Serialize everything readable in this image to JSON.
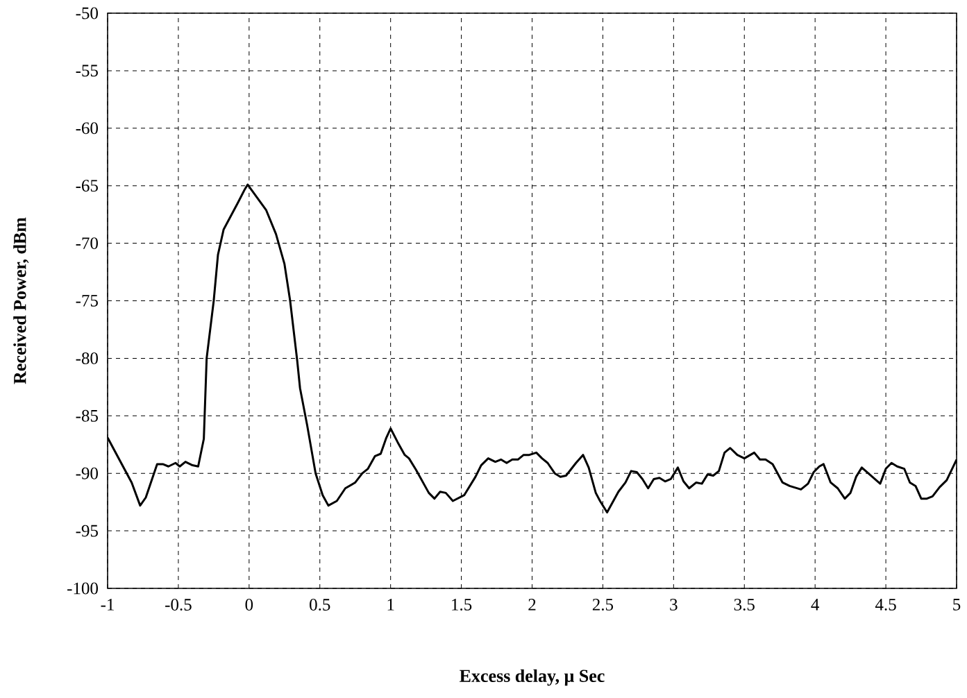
{
  "chart_data": {
    "type": "line",
    "xlabel": "Excess delay, μ Sec",
    "ylabel": "Received Power, dBm",
    "xlim": [
      -1,
      5
    ],
    "ylim": [
      -100,
      -50
    ],
    "xticks": [
      -1,
      -0.5,
      0,
      0.5,
      1,
      1.5,
      2,
      2.5,
      3,
      3.5,
      4,
      4.5,
      5
    ],
    "yticks": [
      -100,
      -95,
      -90,
      -85,
      -80,
      -75,
      -70,
      -65,
      -60,
      -55,
      -50
    ],
    "grid": true,
    "marker": "none",
    "line_style": "solid",
    "series": [
      {
        "color": "#000000",
        "x": [
          -1.0,
          -0.83,
          -0.77,
          -0.73,
          -0.65,
          -0.61,
          -0.57,
          -0.52,
          -0.49,
          -0.45,
          -0.4,
          -0.36,
          -0.32,
          -0.3,
          -0.25,
          -0.22,
          -0.18,
          -0.08,
          -0.03,
          -0.01,
          0.12,
          0.19,
          0.25,
          0.29,
          0.34,
          0.36,
          0.41,
          0.47,
          0.52,
          0.56,
          0.62,
          0.68,
          0.75,
          0.8,
          0.84,
          0.89,
          0.93,
          0.97,
          1.0,
          1.05,
          1.1,
          1.13,
          1.18,
          1.27,
          1.31,
          1.35,
          1.39,
          1.44,
          1.52,
          1.6,
          1.64,
          1.69,
          1.74,
          1.78,
          1.82,
          1.86,
          1.9,
          1.94,
          1.98,
          2.03,
          2.07,
          2.11,
          2.16,
          2.2,
          2.24,
          2.31,
          2.36,
          2.4,
          2.45,
          2.48,
          2.53,
          2.61,
          2.66,
          2.7,
          2.74,
          2.78,
          2.82,
          2.86,
          2.9,
          2.94,
          2.98,
          3.03,
          3.07,
          3.11,
          3.16,
          3.2,
          3.24,
          3.28,
          3.32,
          3.36,
          3.4,
          3.45,
          3.5,
          3.57,
          3.61,
          3.65,
          3.7,
          3.77,
          3.82,
          3.9,
          3.95,
          3.99,
          4.03,
          4.06,
          4.11,
          4.16,
          4.21,
          4.25,
          4.29,
          4.33,
          4.46,
          4.5,
          4.54,
          4.58,
          4.63,
          4.67,
          4.71,
          4.75,
          4.79,
          4.83,
          4.88,
          4.93,
          5.0
        ],
        "values": [
          -86.9,
          -90.8,
          -92.8,
          -92.1,
          -89.2,
          -89.2,
          -89.4,
          -89.1,
          -89.4,
          -89.0,
          -89.3,
          -89.4,
          -87.0,
          -80.0,
          -75.0,
          -71.0,
          -68.8,
          -66.5,
          -65.3,
          -64.9,
          -67.1,
          -69.2,
          -71.8,
          -75.0,
          -80.2,
          -82.6,
          -85.8,
          -90.0,
          -91.9,
          -92.8,
          -92.4,
          -91.3,
          -90.8,
          -90.0,
          -89.6,
          -88.5,
          -88.3,
          -86.9,
          -86.1,
          -87.3,
          -88.4,
          -88.7,
          -89.7,
          -91.7,
          -92.2,
          -91.6,
          -91.7,
          -92.4,
          -91.9,
          -90.3,
          -89.3,
          -88.7,
          -89.0,
          -88.8,
          -89.1,
          -88.8,
          -88.8,
          -88.4,
          -88.4,
          -88.2,
          -88.7,
          -89.1,
          -90.0,
          -90.3,
          -90.2,
          -89.1,
          -88.4,
          -89.5,
          -91.7,
          -92.4,
          -93.4,
          -91.6,
          -90.8,
          -89.8,
          -89.9,
          -90.5,
          -91.3,
          -90.5,
          -90.4,
          -90.7,
          -90.5,
          -89.5,
          -90.7,
          -91.3,
          -90.8,
          -90.9,
          -90.1,
          -90.2,
          -89.8,
          -88.2,
          -87.8,
          -88.4,
          -88.7,
          -88.2,
          -88.8,
          -88.8,
          -89.2,
          -90.8,
          -91.1,
          -91.4,
          -90.9,
          -89.9,
          -89.4,
          -89.2,
          -90.8,
          -91.3,
          -92.2,
          -91.7,
          -90.3,
          -89.5,
          -90.9,
          -89.6,
          -89.1,
          -89.4,
          -89.6,
          -90.8,
          -91.1,
          -92.2,
          -92.2,
          -92.0,
          -91.2,
          -90.6,
          -88.8
        ]
      }
    ]
  }
}
